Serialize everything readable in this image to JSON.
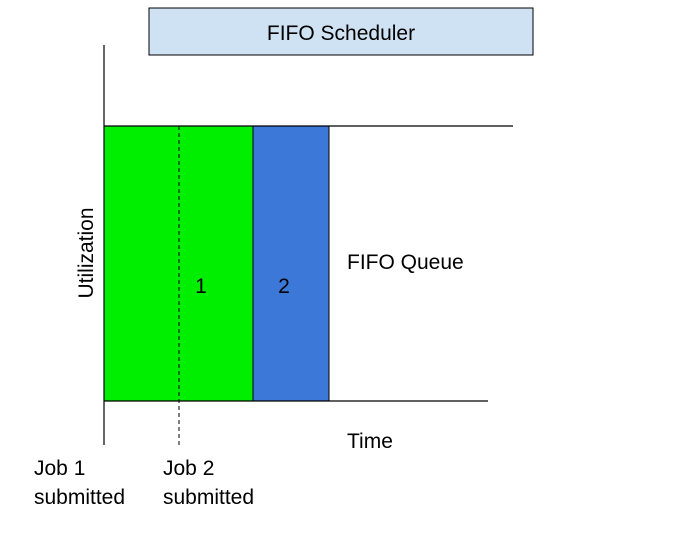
{
  "title": "FIFO Scheduler",
  "axes": {
    "y_label": "Utilization",
    "x_label": "Time"
  },
  "jobs": [
    {
      "id": "1",
      "color": "#00ee00"
    },
    {
      "id": "2",
      "color": "#3c78d8"
    }
  ],
  "queue_label": "FIFO Queue",
  "submissions": [
    {
      "line1": "Job 1",
      "line2": "submitted"
    },
    {
      "line1": "Job 2",
      "line2": "submitted"
    }
  ],
  "colors": {
    "title_box_fill": "#cfe2f3",
    "line": "#000000"
  }
}
